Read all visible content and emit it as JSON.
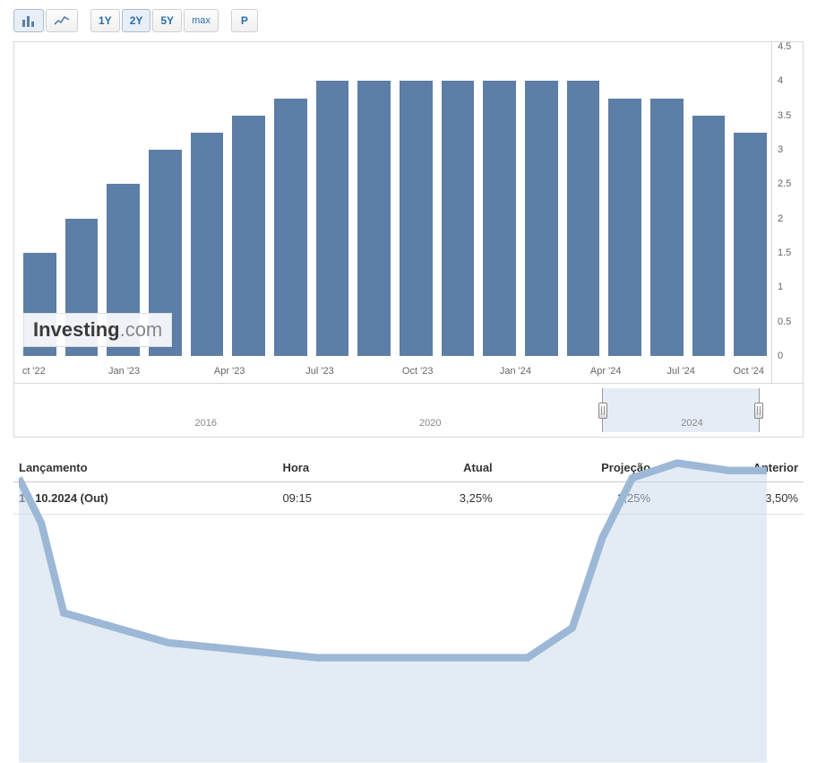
{
  "toolbar": {
    "ranges": [
      "1Y",
      "2Y",
      "5Y",
      "max"
    ],
    "active_range": "2Y",
    "extra_button": "P"
  },
  "chart": {
    "type": "bar",
    "bar_color": "#5d7ea6",
    "background_color": "#ffffff",
    "ylim": [
      0,
      4.5
    ],
    "ytick_step": 0.5,
    "yticks": [
      0,
      0.5,
      1,
      1.5,
      2,
      2.5,
      3,
      3.5,
      4,
      4.5
    ],
    "x_labels": [
      {
        "pos_pct": 2,
        "text": "ct '22"
      },
      {
        "pos_pct": 14,
        "text": "Jan '23"
      },
      {
        "pos_pct": 28,
        "text": "Apr '23"
      },
      {
        "pos_pct": 40,
        "text": "Jul '23"
      },
      {
        "pos_pct": 53,
        "text": "Oct '23"
      },
      {
        "pos_pct": 66,
        "text": "Jan '24"
      },
      {
        "pos_pct": 78,
        "text": "Apr '24"
      },
      {
        "pos_pct": 88,
        "text": "Jul '24"
      },
      {
        "pos_pct": 97,
        "text": "Oct '24"
      }
    ],
    "values": [
      1.5,
      2.0,
      2.5,
      3.0,
      3.25,
      3.5,
      3.75,
      4.0,
      4.0,
      4.0,
      4.0,
      4.0,
      4.0,
      4.0,
      3.75,
      3.75,
      3.5,
      3.25
    ]
  },
  "watermark": {
    "part1": "Investing",
    "part2": ".com"
  },
  "range_slider": {
    "labels": [
      {
        "pos_pct": 25,
        "text": "2016"
      },
      {
        "pos_pct": 55,
        "text": "2020"
      },
      {
        "pos_pct": 90,
        "text": "2024"
      }
    ],
    "selection": {
      "left_pct": 78,
      "right_pct": 99
    },
    "sparkline_color": "#9db8d6",
    "sparkline_fill": "rgba(200,215,235,0.5)"
  },
  "table": {
    "headers": [
      "Lançamento",
      "Hora",
      "Atual",
      "Projeção",
      "Anterior"
    ],
    "row": {
      "release": "17.10.2024 (Out)",
      "time": "09:15",
      "actual": "3,25%",
      "forecast": "3,25%",
      "previous": "3,50%"
    }
  }
}
